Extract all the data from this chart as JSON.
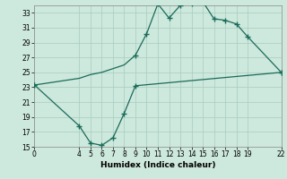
{
  "title": "",
  "xlabel": "Humidex (Indice chaleur)",
  "bg_color": "#cde8dc",
  "grid_color": "#a8ccbe",
  "line_color": "#1a6b5a",
  "xlim": [
    0,
    22
  ],
  "ylim": [
    15,
    34
  ],
  "xticks": [
    0,
    4,
    5,
    6,
    7,
    8,
    9,
    10,
    11,
    12,
    13,
    14,
    15,
    16,
    17,
    18,
    19,
    22
  ],
  "yticks": [
    15,
    17,
    19,
    21,
    23,
    25,
    27,
    29,
    31,
    33
  ],
  "upper_line": [
    [
      0,
      23.3
    ],
    [
      4,
      24.2
    ],
    [
      5,
      24.7
    ],
    [
      6,
      25.0
    ],
    [
      7,
      25.5
    ],
    [
      8,
      26.0
    ],
    [
      9,
      27.3
    ],
    [
      10,
      30.2
    ],
    [
      11,
      34.2
    ],
    [
      12,
      32.3
    ],
    [
      13,
      34.0
    ],
    [
      14,
      34.2
    ],
    [
      15,
      34.5
    ],
    [
      16,
      32.2
    ],
    [
      17,
      32.0
    ],
    [
      18,
      31.5
    ],
    [
      19,
      29.8
    ],
    [
      22,
      25.0
    ]
  ],
  "lower_line": [
    [
      0,
      23.3
    ],
    [
      4,
      17.8
    ],
    [
      5,
      15.5
    ],
    [
      6,
      15.2
    ],
    [
      7,
      16.2
    ],
    [
      8,
      19.5
    ],
    [
      9,
      23.2
    ],
    [
      22,
      25.0
    ]
  ],
  "upper_markers": [
    0,
    9,
    10,
    11,
    12,
    13,
    14,
    15,
    16,
    17,
    18,
    19,
    22
  ],
  "lower_markers": [
    0,
    4,
    5,
    6,
    7,
    8,
    9,
    22
  ]
}
